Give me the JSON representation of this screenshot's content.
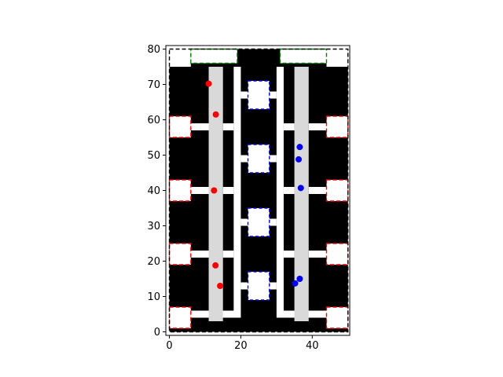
{
  "chart_data": {
    "type": "scatter",
    "title": "",
    "xlabel": "",
    "ylabel": "",
    "xlim": [
      -1,
      50.5
    ],
    "ylim": [
      -1,
      81
    ],
    "x_ticks": [
      0,
      20,
      40
    ],
    "y_ticks": [
      0,
      10,
      20,
      30,
      40,
      50,
      60,
      70,
      80
    ],
    "grid": false,
    "legend": "none",
    "colors": {
      "background": "#000000",
      "free_space": "#ffffff",
      "aisle": "#d9d9d9",
      "red": "#ff0000",
      "blue": "#0000ff",
      "green": "#008000",
      "boundary": "#000000"
    },
    "boundary": {
      "x": [
        0,
        50
      ],
      "y": [
        0,
        80
      ]
    },
    "free_space": [
      {
        "x": [
          0,
          6
        ],
        "y": [
          75,
          80
        ]
      },
      {
        "x": [
          44,
          50
        ],
        "y": [
          75,
          80
        ]
      },
      {
        "x": [
          6,
          19
        ],
        "y": [
          4,
          6
        ]
      },
      {
        "x": [
          31,
          44
        ],
        "y": [
          4,
          6
        ]
      },
      {
        "x": [
          18,
          20
        ],
        "y": [
          4,
          75
        ]
      },
      {
        "x": [
          30,
          32
        ],
        "y": [
          4,
          75
        ]
      },
      {
        "x": [
          6,
          12
        ],
        "y": [
          57,
          59
        ]
      },
      {
        "x": [
          6,
          12
        ],
        "y": [
          39,
          41
        ]
      },
      {
        "x": [
          6,
          12
        ],
        "y": [
          21,
          23
        ]
      },
      {
        "x": [
          15,
          18
        ],
        "y": [
          57,
          59
        ]
      },
      {
        "x": [
          15,
          18
        ],
        "y": [
          39,
          41
        ]
      },
      {
        "x": [
          15,
          18
        ],
        "y": [
          21,
          23
        ]
      },
      {
        "x": [
          32,
          35
        ],
        "y": [
          57,
          59
        ]
      },
      {
        "x": [
          32,
          35
        ],
        "y": [
          39,
          41
        ]
      },
      {
        "x": [
          32,
          35
        ],
        "y": [
          21,
          23
        ]
      },
      {
        "x": [
          39,
          44
        ],
        "y": [
          57,
          59
        ]
      },
      {
        "x": [
          39,
          44
        ],
        "y": [
          39,
          41
        ]
      },
      {
        "x": [
          39,
          44
        ],
        "y": [
          21,
          23
        ]
      },
      {
        "x": [
          20,
          22
        ],
        "y": [
          66,
          68
        ]
      },
      {
        "x": [
          20,
          22
        ],
        "y": [
          48,
          50
        ]
      },
      {
        "x": [
          20,
          22
        ],
        "y": [
          30,
          32
        ]
      },
      {
        "x": [
          20,
          22
        ],
        "y": [
          12,
          14
        ]
      },
      {
        "x": [
          28,
          30
        ],
        "y": [
          66,
          68
        ]
      },
      {
        "x": [
          28,
          30
        ],
        "y": [
          48,
          50
        ]
      },
      {
        "x": [
          28,
          30
        ],
        "y": [
          30,
          32
        ]
      },
      {
        "x": [
          28,
          30
        ],
        "y": [
          12,
          14
        ]
      }
    ],
    "aisles": [
      {
        "x": [
          11,
          15
        ],
        "y": [
          3,
          75
        ]
      },
      {
        "x": [
          35,
          39
        ],
        "y": [
          3,
          75
        ]
      }
    ],
    "dock_zones_green": [
      {
        "x": [
          6,
          19
        ],
        "y": [
          76,
          80
        ]
      },
      {
        "x": [
          31,
          44
        ],
        "y": [
          76,
          80
        ]
      }
    ],
    "stations_red": [
      {
        "x": [
          0,
          6
        ],
        "y": [
          55,
          61
        ]
      },
      {
        "x": [
          0,
          6
        ],
        "y": [
          37,
          43
        ]
      },
      {
        "x": [
          0,
          6
        ],
        "y": [
          19,
          25
        ]
      },
      {
        "x": [
          0,
          6
        ],
        "y": [
          1,
          7
        ]
      },
      {
        "x": [
          44,
          50
        ],
        "y": [
          55,
          61
        ]
      },
      {
        "x": [
          44,
          50
        ],
        "y": [
          37,
          43
        ]
      },
      {
        "x": [
          44,
          50
        ],
        "y": [
          19,
          25
        ]
      },
      {
        "x": [
          44,
          50
        ],
        "y": [
          1,
          7
        ]
      }
    ],
    "stations_blue": [
      {
        "x": [
          22,
          28
        ],
        "y": [
          63,
          71
        ]
      },
      {
        "x": [
          22,
          28
        ],
        "y": [
          45,
          53
        ]
      },
      {
        "x": [
          22,
          28
        ],
        "y": [
          27,
          35
        ]
      },
      {
        "x": [
          22,
          28
        ],
        "y": [
          9,
          17
        ]
      }
    ],
    "series": [
      {
        "color": "red",
        "points": [
          [
            11,
            70.2
          ],
          [
            13,
            61.5
          ],
          [
            12.5,
            40
          ],
          [
            12.9,
            18.8
          ],
          [
            14.2,
            13
          ]
        ]
      },
      {
        "color": "blue",
        "points": [
          [
            36.5,
            52.3
          ],
          [
            36.2,
            48.8
          ],
          [
            36.8,
            40.7
          ],
          [
            36.5,
            15
          ],
          [
            35.2,
            13.7
          ]
        ]
      }
    ]
  }
}
